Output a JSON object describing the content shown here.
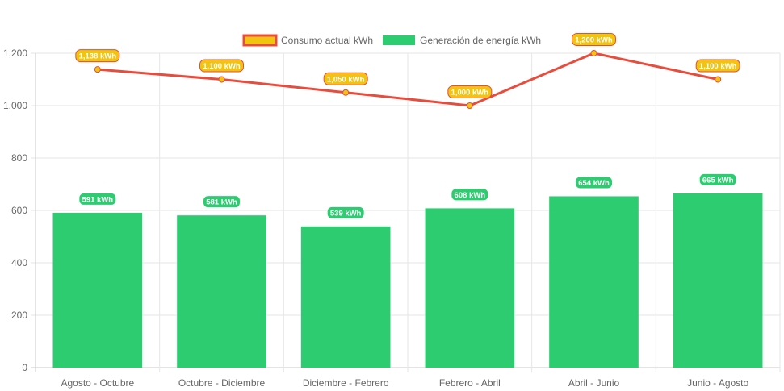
{
  "chart_data": {
    "type": "bar",
    "categories": [
      "Agosto - Octubre",
      "Octubre - Diciembre",
      "Diciembre - Febrero",
      "Febrero - Abril",
      "Abril - Junio",
      "Junio - Agosto"
    ],
    "ylim": [
      0,
      1200
    ],
    "yticks": [
      0,
      200,
      400,
      600,
      800,
      1000,
      1200
    ],
    "ytick_labels": [
      "0",
      "200",
      "400",
      "600",
      "800",
      "1,000",
      "1,200"
    ],
    "grid": true,
    "legend_position": "top-center",
    "series": [
      {
        "name": "Consumo actual kWh",
        "type": "line",
        "values": [
          1138,
          1100,
          1050,
          1000,
          1200,
          1100
        ],
        "data_labels": [
          "1,138 kWh",
          "1,100 kWh",
          "1,050 kWh",
          "1,000 kWh",
          "1,200 kWh",
          "1,100 kWh"
        ],
        "color": "#e74c3c",
        "label_color": "#f1c40f"
      },
      {
        "name": "Generación de energía kWh",
        "type": "bar",
        "values": [
          591,
          581,
          539,
          608,
          654,
          665
        ],
        "data_labels": [
          "591 kWh",
          "581 kWh",
          "539 kWh",
          "608 kWh",
          "654 kWh",
          "665 kWh"
        ],
        "color": "#2ecc71"
      }
    ]
  }
}
